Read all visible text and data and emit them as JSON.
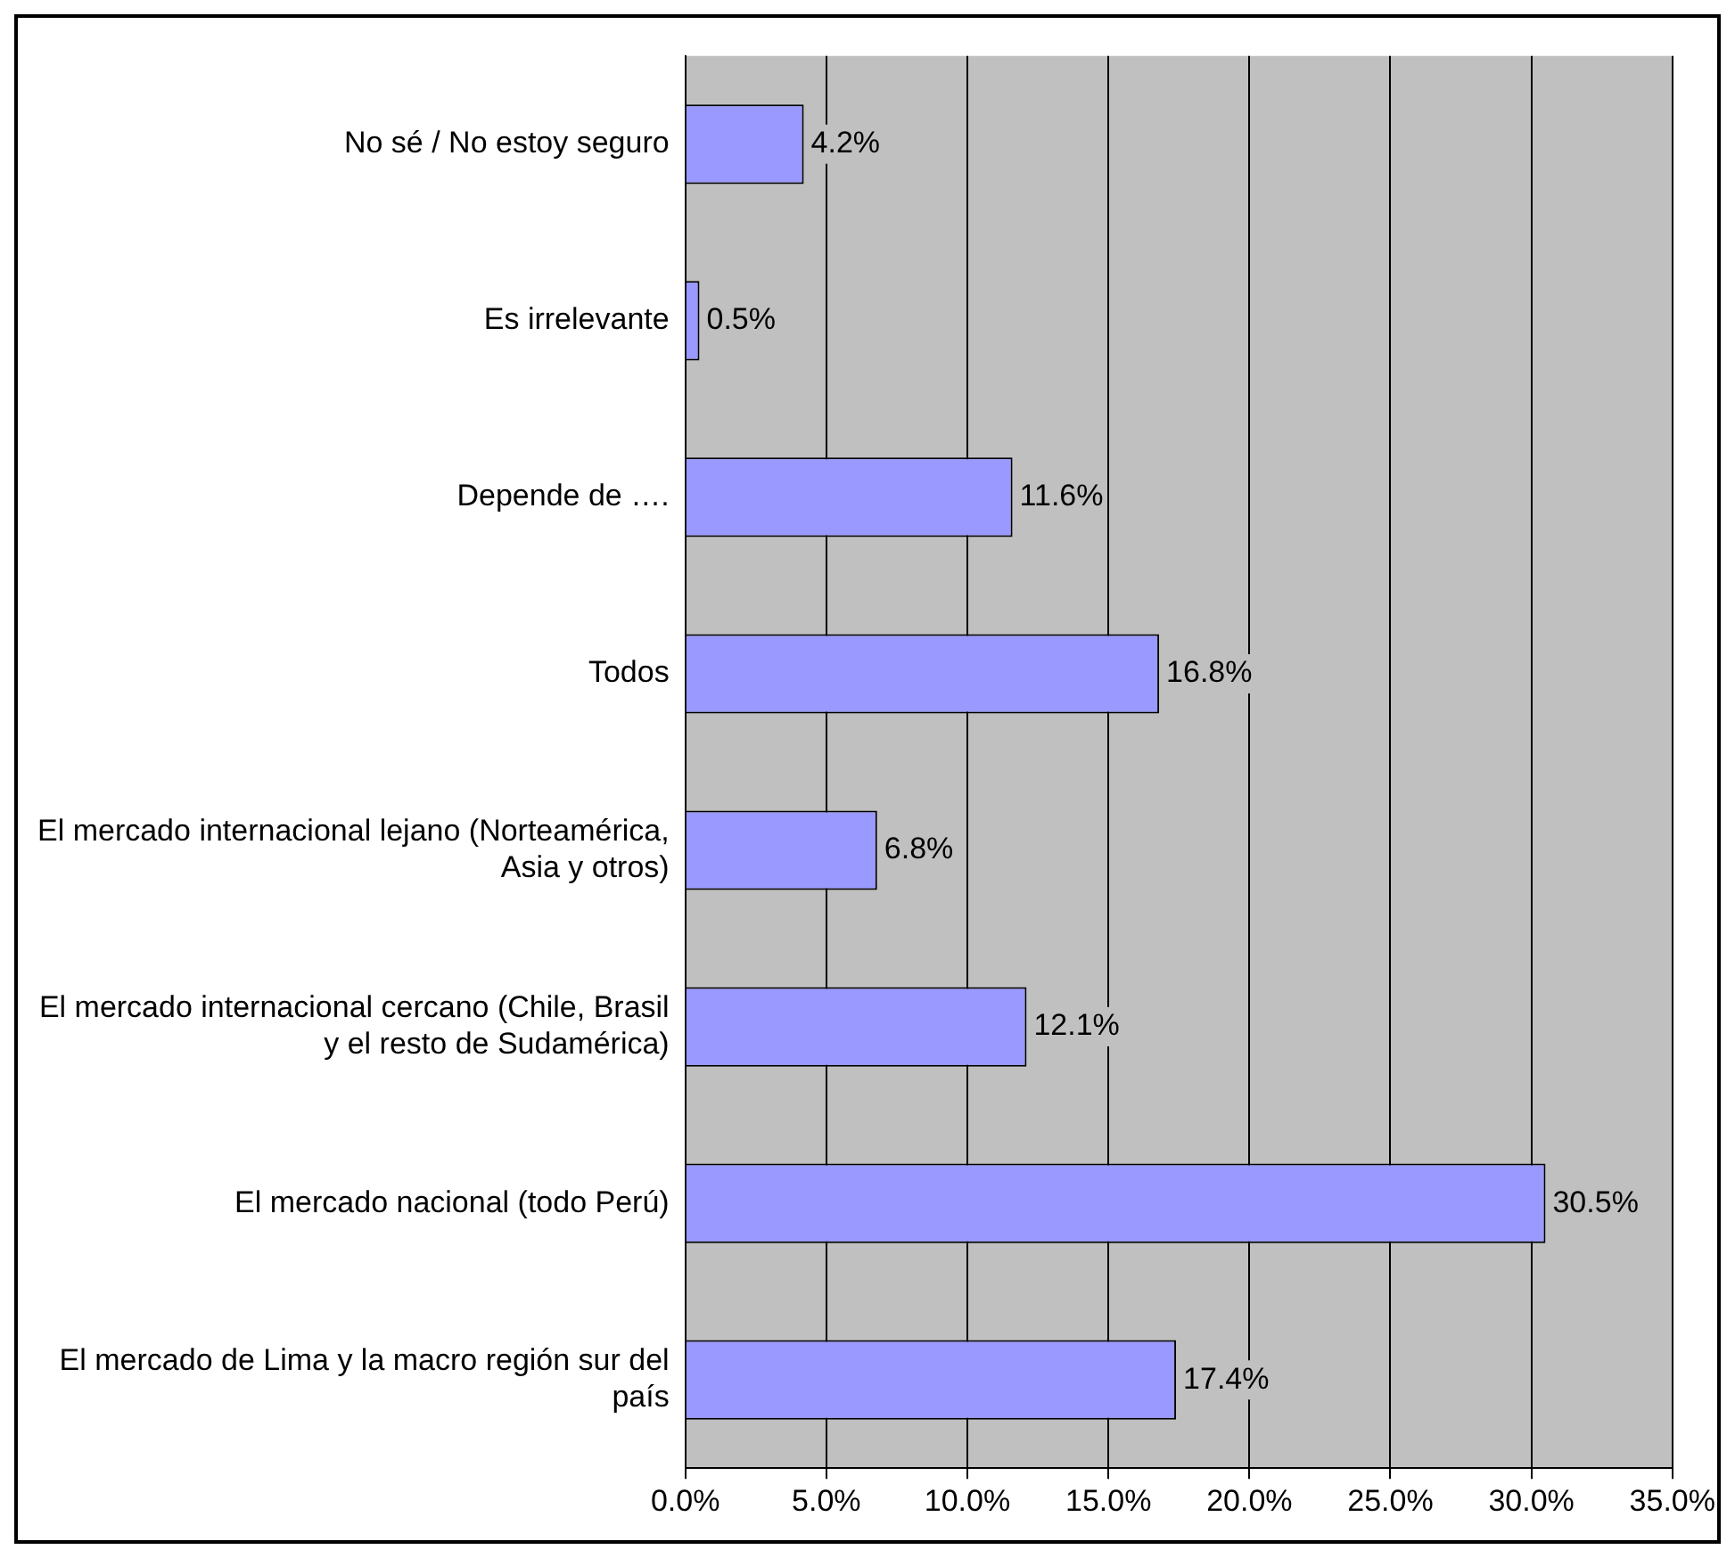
{
  "chart_data": {
    "type": "bar",
    "orientation": "horizontal",
    "categories": [
      "No sé / No estoy seguro",
      "Es irrelevante",
      "Depende de ….",
      "Todos",
      "El mercado internacional lejano (Norteamérica, Asia y otros)",
      "El mercado internacional cercano (Chile, Brasil y el resto de Sudamérica)",
      "El mercado nacional (todo Perú)",
      "El mercado de Lima y la macro región sur del país"
    ],
    "values": [
      4.2,
      0.5,
      11.6,
      16.8,
      6.8,
      12.1,
      30.5,
      17.4
    ],
    "value_labels": [
      "4.2%",
      "0.5%",
      "11.6%",
      "16.8%",
      "6.8%",
      "12.1%",
      "30.5%",
      "17.4%"
    ],
    "color": "#9999ff",
    "xlim": [
      0,
      35
    ],
    "xticks": [
      {
        "value": 0,
        "label": "0.0%"
      },
      {
        "value": 5,
        "label": "5.0%"
      },
      {
        "value": 10,
        "label": "10.0%"
      },
      {
        "value": 15,
        "label": "15.0%"
      },
      {
        "value": 20,
        "label": "20.0%"
      },
      {
        "value": 25,
        "label": "25.0%"
      },
      {
        "value": 30,
        "label": "30.0%"
      },
      {
        "value": 35,
        "label": "35.0%"
      }
    ],
    "grid": "x",
    "legend": false
  }
}
